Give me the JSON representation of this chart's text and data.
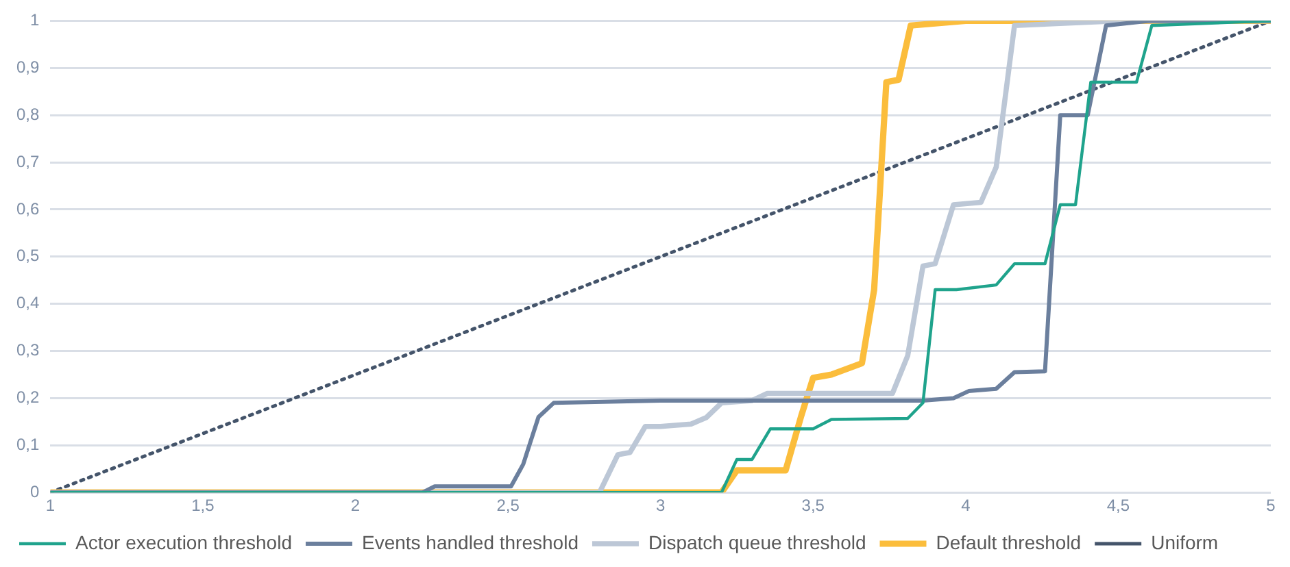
{
  "chart_data": {
    "type": "line",
    "xlim": [
      1,
      5
    ],
    "xticks": [
      1,
      {
        "value": 1.5,
        "label": "1,5"
      },
      2,
      {
        "value": 2.5,
        "label": "2,5"
      },
      3,
      {
        "value": 3.5,
        "label": "3,5"
      },
      4,
      {
        "value": 4.5,
        "label": "4,5"
      },
      5
    ],
    "ylim": [
      0,
      1
    ],
    "yticks": [
      0,
      {
        "value": 0.1,
        "label": "0,1"
      },
      {
        "value": 0.2,
        "label": "0,2"
      },
      {
        "value": 0.3,
        "label": "0,3"
      },
      {
        "value": 0.4,
        "label": "0,4"
      },
      {
        "value": 0.5,
        "label": "0,5"
      },
      {
        "value": 0.6,
        "label": "0,6"
      },
      {
        "value": 0.7,
        "label": "0,7"
      },
      {
        "value": 0.8,
        "label": "0,8"
      },
      {
        "value": 0.9,
        "label": "0,9"
      },
      1
    ],
    "grid": "y",
    "legend": "bottom",
    "marker": "none",
    "line_style": "solid",
    "series": [
      {
        "name": "Actor execution threshold",
        "color": "#1fa38c",
        "x": [
          1,
          3.2,
          3.25,
          3.3,
          3.36,
          3.5,
          3.56,
          3.81,
          3.86,
          3.9,
          3.97,
          4.1,
          4.16,
          4.26,
          4.31,
          4.36,
          4.41,
          4.56,
          4.61,
          5
        ],
        "values": [
          0,
          0,
          0.07,
          0.07,
          0.135,
          0.135,
          0.155,
          0.157,
          0.19,
          0.43,
          0.43,
          0.44,
          0.485,
          0.485,
          0.61,
          0.61,
          0.87,
          0.87,
          0.99,
          1
        ]
      },
      {
        "name": "Events handled threshold",
        "color": "#6b7f9d",
        "x": [
          1,
          2.22,
          2.26,
          2.51,
          2.55,
          2.6,
          2.65,
          3,
          3.86,
          3.96,
          4.01,
          4.1,
          4.16,
          4.26,
          4.31,
          4.4,
          4.46,
          4.6,
          5
        ],
        "values": [
          0,
          0,
          0.013,
          0.013,
          0.06,
          0.16,
          0.19,
          0.195,
          0.195,
          0.2,
          0.215,
          0.22,
          0.255,
          0.257,
          0.8,
          0.8,
          0.99,
          1,
          1
        ]
      },
      {
        "name": "Dispatch queue threshold",
        "color": "#bcc7d6",
        "x": [
          1,
          2.8,
          2.86,
          2.9,
          2.95,
          3,
          3.1,
          3.15,
          3.2,
          3.3,
          3.35,
          3.76,
          3.81,
          3.86,
          3.9,
          3.96,
          4.05,
          4.1,
          4.16,
          4.5,
          5
        ],
        "values": [
          0,
          0,
          0.08,
          0.085,
          0.14,
          0.14,
          0.145,
          0.159,
          0.19,
          0.195,
          0.21,
          0.21,
          0.29,
          0.48,
          0.485,
          0.61,
          0.615,
          0.69,
          0.99,
          1,
          1
        ]
      },
      {
        "name": "Default threshold",
        "color": "#fbbd3c",
        "x": [
          1,
          3.2,
          3.25,
          3.41,
          3.46,
          3.5,
          3.56,
          3.66,
          3.7,
          3.74,
          3.78,
          3.82,
          4,
          5
        ],
        "values": [
          0,
          0,
          0.047,
          0.047,
          0.16,
          0.243,
          0.25,
          0.274,
          0.43,
          0.87,
          0.875,
          0.99,
          1,
          1
        ]
      },
      {
        "name": "Uniform",
        "color": "#44546a",
        "line_style": "dotted",
        "x": [
          1,
          5
        ],
        "values": [
          0,
          1
        ]
      }
    ]
  }
}
